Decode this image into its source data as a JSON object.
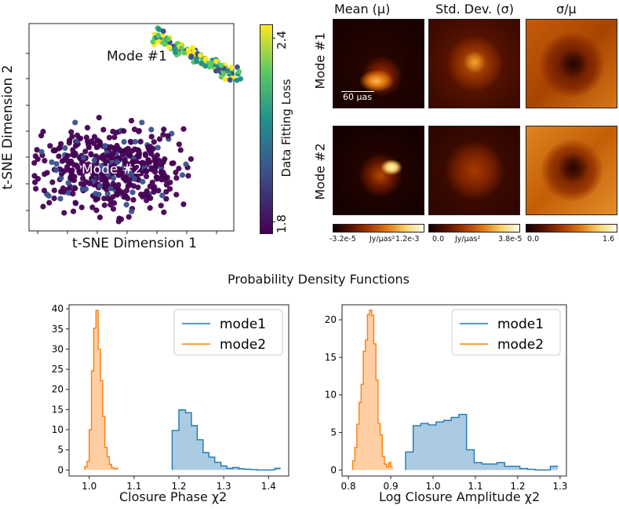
{
  "tsne": {
    "xlabel": "t-SNE Dimension 1",
    "ylabel": "t-SNE Dimension 2",
    "mode1_label": "Mode #1",
    "mode2_label": "Mode #2",
    "colorbar": {
      "label": "Data Fitting Loss",
      "tick_high": "2.4",
      "tick_low": "1.8",
      "range": [
        1.75,
        2.5
      ],
      "colors": [
        "#440154",
        "#3b528b",
        "#21918c",
        "#5ec962",
        "#fde725"
      ]
    }
  },
  "image_grid": {
    "columns": [
      "Mean (μ)",
      "Std. Dev. (σ)",
      "σ/μ"
    ],
    "rows": [
      "Mode #1",
      "Mode #2"
    ],
    "scale_bar": "60 μas",
    "colorbars": [
      {
        "min": "-3.2e-5",
        "unit": "Jy/μas²",
        "max": "1.2e-3"
      },
      {
        "min": "0.0",
        "unit": "Jy/μas²",
        "max": "3.8e-5"
      },
      {
        "min": "0.0",
        "unit": "",
        "max": "1.6"
      }
    ],
    "colormap": [
      "#120000",
      "#5a1200",
      "#a83a00",
      "#e07a10",
      "#fbd36b",
      "#fffbe8"
    ]
  },
  "pdf_title": "Probability Density Functions",
  "chart_data": [
    {
      "type": "histogram",
      "title": "",
      "xlabel": "Closure Phase χ2",
      "ylabel": "",
      "xlim": [
        0.955,
        1.445
      ],
      "ylim": [
        -1.5,
        41
      ],
      "xticks": [
        "1.0",
        "1.1",
        "1.2",
        "1.3",
        "1.4"
      ],
      "xtick_values": [
        1.0,
        1.1,
        1.2,
        1.3,
        1.4
      ],
      "yticks": [
        "0",
        "5",
        "10",
        "15",
        "20",
        "25",
        "30",
        "35",
        "40"
      ],
      "ytick_values": [
        0,
        5,
        10,
        15,
        20,
        25,
        30,
        35,
        40
      ],
      "legend": [
        "mode1",
        "mode2"
      ],
      "legend_position": "top-right",
      "series": [
        {
          "name": "mode1",
          "color": "#1f77b4",
          "edges": [
            1.185,
            1.2,
            1.215,
            1.228,
            1.241,
            1.254,
            1.267,
            1.28,
            1.294,
            1.307,
            1.32,
            1.334,
            1.347,
            1.36,
            1.374,
            1.387,
            1.4,
            1.414,
            1.427
          ],
          "values": [
            9.8,
            14.9,
            14.2,
            11.0,
            7.5,
            4.3,
            3.2,
            1.9,
            1.0,
            0.4,
            0.6,
            0.3,
            0.2,
            0.1,
            0.0,
            0.0,
            0.0,
            0.4
          ]
        },
        {
          "name": "mode2",
          "color": "#ff7f0e",
          "edges": [
            0.99,
            0.995,
            1.0,
            1.005,
            1.01,
            1.015,
            1.02,
            1.025,
            1.03,
            1.035,
            1.04,
            1.045,
            1.05,
            1.055,
            1.06,
            1.065
          ],
          "values": [
            0.8,
            2.2,
            10.0,
            24.6,
            35.2,
            39.6,
            30.0,
            22.2,
            13.3,
            5.6,
            3.3,
            1.4,
            0.6,
            0.3,
            0.4
          ]
        }
      ]
    },
    {
      "type": "histogram",
      "title": "",
      "xlabel": "Log Closure Amplitude χ2",
      "ylabel": "",
      "xlim": [
        0.785,
        1.315
      ],
      "ylim": [
        -0.8,
        22
      ],
      "xticks": [
        "0.8",
        "0.9",
        "1.0",
        "1.1",
        "1.2",
        "1.3"
      ],
      "xtick_values": [
        0.8,
        0.9,
        1.0,
        1.1,
        1.2,
        1.3
      ],
      "yticks": [
        "0",
        "5",
        "10",
        "15",
        "20"
      ],
      "ytick_values": [
        0,
        5,
        10,
        15,
        20
      ],
      "legend": [
        "mode1",
        "mode2"
      ],
      "legend_position": "top-right",
      "series": [
        {
          "name": "mode1",
          "color": "#1f77b4",
          "edges": [
            0.935,
            0.953,
            0.971,
            0.989,
            1.007,
            1.025,
            1.043,
            1.061,
            1.079,
            1.097,
            1.115,
            1.133,
            1.151,
            1.169,
            1.187,
            1.205,
            1.223,
            1.241,
            1.259,
            1.277,
            1.295
          ],
          "values": [
            2.4,
            5.9,
            6.2,
            6.0,
            6.4,
            6.6,
            7.0,
            7.4,
            2.7,
            1.0,
            0.8,
            0.8,
            1.0,
            0.5,
            0.5,
            0.2,
            0.1,
            0.0,
            0.0,
            0.5
          ]
        },
        {
          "name": "mode2",
          "color": "#ff7f0e",
          "edges": [
            0.81,
            0.815,
            0.82,
            0.825,
            0.83,
            0.835,
            0.84,
            0.845,
            0.85,
            0.855,
            0.86,
            0.865,
            0.87,
            0.875,
            0.88,
            0.885,
            0.89,
            0.895,
            0.9,
            0.905
          ],
          "values": [
            1.2,
            3.0,
            6.1,
            9.0,
            11.4,
            15.8,
            17.3,
            20.7,
            21.3,
            20.6,
            16.8,
            12.0,
            6.2,
            4.7,
            1.8,
            0.8,
            0.4,
            1.0,
            0.4
          ]
        }
      ]
    }
  ]
}
